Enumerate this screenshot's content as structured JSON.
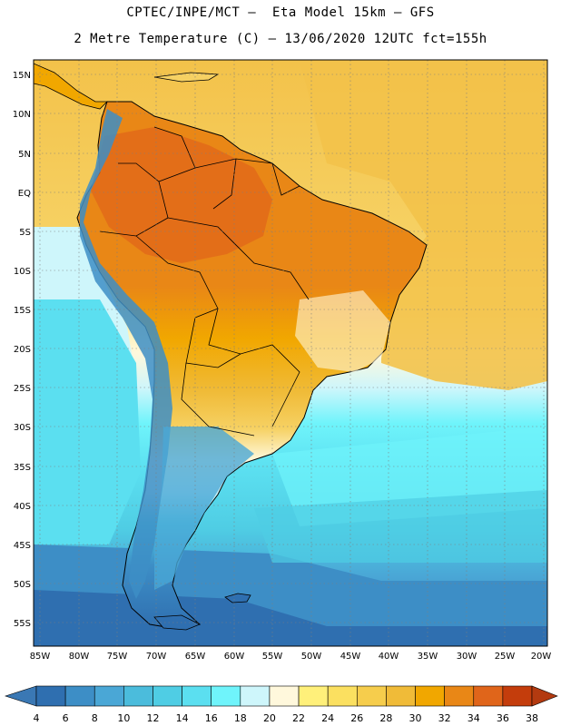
{
  "header": {
    "title_line1": "CPTEC/INPE/MCT –  Eta Model 15km – GFS",
    "title_line2": "2 Metre Temperature (C) – 13/06/2020 12UTC fct=155h"
  },
  "map": {
    "lat_labels": [
      "15N",
      "10N",
      "5N",
      "EQ",
      "5S",
      "10S",
      "15S",
      "20S",
      "25S",
      "30S",
      "35S",
      "40S",
      "45S",
      "50S",
      "55S"
    ],
    "lon_labels": [
      "85W",
      "80W",
      "75W",
      "70W",
      "65W",
      "60W",
      "55W",
      "50W",
      "45W",
      "40W",
      "35W",
      "30W",
      "25W",
      "20W"
    ]
  },
  "colorbar": {
    "labels": [
      "4",
      "6",
      "8",
      "10",
      "12",
      "14",
      "16",
      "18",
      "20",
      "22",
      "24",
      "26",
      "28",
      "30",
      "32",
      "34",
      "36",
      "38"
    ],
    "colors": [
      "#3a78b4",
      "#2f6fb0",
      "#3d8ec6",
      "#4aa7d6",
      "#4bbcdc",
      "#4fcde4",
      "#5bdff0",
      "#6ff4fb",
      "#cef6fb",
      "#fff8dc",
      "#fff07a",
      "#fbe060",
      "#f6cd4c",
      "#f0bb38",
      "#f1a700",
      "#e98716",
      "#e0651a",
      "#c43d0c",
      "#b33a10"
    ]
  }
}
